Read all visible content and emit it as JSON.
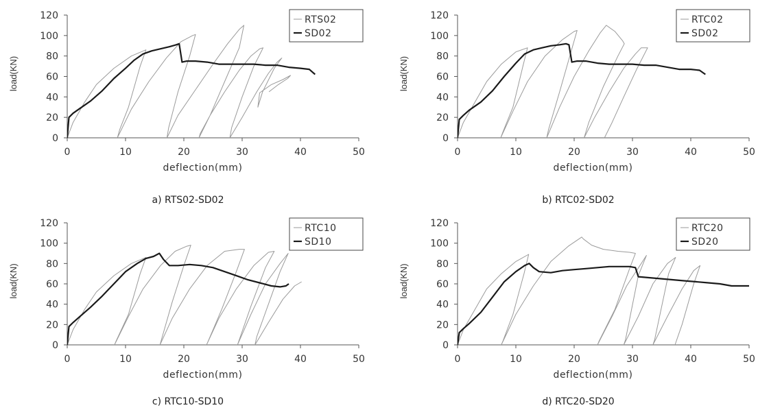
{
  "figure": {
    "panels": [
      {
        "caption": "a) RTS02-SD02",
        "chart_data": {
          "type": "line",
          "xlabel": "deflection(mm)",
          "ylabel": "load(KN)",
          "xlim": [
            0,
            50
          ],
          "ylim": [
            0,
            120
          ],
          "xticks": [
            "0",
            "10",
            "20",
            "30",
            "40",
            "50"
          ],
          "yticks": [
            "0",
            "20",
            "40",
            "60",
            "80",
            "100",
            "120"
          ],
          "grid": false,
          "legend_position": "top-right",
          "series": [
            {
              "name": "RTS02",
              "style": "thin-gray",
              "x": [
                0,
                1,
                3,
                5,
                8,
                11,
                13.5,
                12.5,
                10.5,
                9,
                8.6,
                11,
                14,
                17,
                19.5,
                21.5,
                22,
                21,
                19,
                17.4,
                17.1,
                19,
                22,
                25,
                27.5,
                29.5,
                30.3,
                29.5,
                27,
                24.5,
                22.8,
                22.6,
                24.5,
                27,
                29.5,
                31.5,
                33,
                33.6,
                32,
                30,
                28.2,
                27.9,
                30,
                32.5,
                34.5,
                36,
                36.8,
                35.5,
                33.5,
                32.7,
                33,
                35,
                37,
                38.3,
                37.8,
                36.2,
                34.6
              ],
              "y": [
                0,
                15,
                35,
                52,
                68,
                80,
                86,
                70,
                30,
                8,
                0,
                28,
                55,
                78,
                94,
                100,
                101,
                80,
                45,
                10,
                0,
                22,
                47,
                72,
                92,
                106,
                110,
                88,
                55,
                22,
                4,
                0,
                22,
                45,
                66,
                80,
                87,
                88,
                70,
                40,
                10,
                0,
                20,
                45,
                63,
                74,
                78,
                68,
                45,
                30,
                44,
                52,
                57,
                61,
                58,
                52,
                45
              ]
            },
            {
              "name": "SD02",
              "style": "thick-black",
              "x": [
                0,
                0.3,
                1,
                2,
                4,
                6,
                8,
                10,
                11.5,
                13,
                14.5,
                16,
                17.5,
                18.7,
                19.2,
                19.7,
                20.5,
                22,
                24,
                26,
                28,
                30,
                32,
                34,
                36,
                38,
                40,
                41.5,
                42.5
              ],
              "y": [
                0,
                20,
                24,
                28,
                36,
                46,
                58,
                68,
                76,
                82,
                85,
                87,
                89,
                91,
                92,
                74,
                75,
                75,
                74,
                72,
                72,
                72,
                72,
                71,
                71,
                69,
                68,
                67,
                62
              ]
            }
          ]
        }
      },
      {
        "caption": "b) RTC02-SD02",
        "chart_data": {
          "type": "line",
          "xlabel": "deflection(mm)",
          "ylabel": "load(KN)",
          "xlim": [
            0,
            50
          ],
          "ylim": [
            0,
            120
          ],
          "xticks": [
            "0",
            "10",
            "20",
            "30",
            "40",
            "50"
          ],
          "yticks": [
            "0",
            "20",
            "40",
            "60",
            "80",
            "100",
            "120"
          ],
          "grid": false,
          "legend_position": "top-right",
          "series": [
            {
              "name": "RTC02",
              "style": "thin-gray",
              "x": [
                0,
                1,
                3,
                5,
                7.5,
                10,
                12,
                11.3,
                9.5,
                7.8,
                7.4,
                9.5,
                12,
                15,
                18,
                20,
                20.5,
                19.5,
                17.5,
                15.6,
                15.3,
                17.5,
                20,
                22.5,
                24.5,
                25.5,
                27,
                28.3,
                28.6,
                27.5,
                25,
                22.5,
                21.7,
                23.5,
                26,
                28.5,
                30.5,
                31.5,
                32.6,
                30.8,
                28.5,
                26.5,
                25.2
              ],
              "y": [
                0,
                15,
                35,
                55,
                72,
                84,
                88,
                72,
                30,
                6,
                0,
                26,
                55,
                80,
                96,
                104,
                105,
                85,
                45,
                8,
                0,
                30,
                60,
                85,
                103,
                110,
                104,
                95,
                92,
                80,
                50,
                15,
                0,
                20,
                45,
                68,
                82,
                88,
                88,
                68,
                40,
                15,
                0
              ]
            },
            {
              "name": "SD02",
              "style": "thick-black",
              "x": [
                0,
                0.3,
                1,
                2,
                4,
                6,
                8,
                10,
                11.5,
                13,
                14.5,
                16,
                17.5,
                18.6,
                19.1,
                19.6,
                20.5,
                22,
                24,
                26,
                28,
                30,
                32,
                34,
                36,
                38,
                40,
                41.5,
                42.5
              ],
              "y": [
                0,
                18,
                22,
                27,
                35,
                46,
                60,
                73,
                82,
                86,
                88,
                90,
                91,
                92,
                91,
                74,
                75,
                75,
                73,
                72,
                72,
                72,
                71,
                71,
                69,
                67,
                67,
                66,
                62
              ]
            }
          ]
        }
      },
      {
        "caption": "c) RTC10-SD10",
        "chart_data": {
          "type": "line",
          "xlabel": "deflection(mm)",
          "ylabel": "load(KN)",
          "xlim": [
            0,
            50
          ],
          "ylim": [
            0,
            120
          ],
          "xticks": [
            "0",
            "10",
            "20",
            "30",
            "40",
            "50"
          ],
          "yticks": [
            "0",
            "20",
            "40",
            "60",
            "80",
            "100",
            "120"
          ],
          "grid": false,
          "legend_position": "top-right",
          "series": [
            {
              "name": "RTC10",
              "style": "thin-gray",
              "x": [
                0,
                1,
                3,
                5,
                8,
                11,
                13.5,
                12.5,
                10.5,
                8.4,
                8.1,
                10.5,
                13,
                16,
                18.5,
                20.5,
                21.2,
                20,
                18,
                16.2,
                15.9,
                18,
                21,
                24,
                27,
                29.5,
                30.4,
                29,
                26.5,
                24.2,
                23.9,
                26,
                29,
                32,
                34.5,
                35.5,
                34,
                31.5,
                29.5,
                29.2,
                31.5,
                34,
                36.5,
                37.9,
                36.5,
                34.5,
                32.5,
                32.2,
                34.5,
                37,
                39,
                40.2
              ],
              "y": [
                0,
                15,
                35,
                52,
                68,
                80,
                86,
                70,
                30,
                4,
                0,
                28,
                55,
                78,
                92,
                97,
                98,
                78,
                42,
                6,
                0,
                26,
                55,
                78,
                92,
                94,
                94,
                72,
                35,
                4,
                0,
                26,
                55,
                78,
                91,
                92,
                76,
                38,
                5,
                0,
                30,
                60,
                80,
                90,
                72,
                40,
                8,
                0,
                22,
                45,
                58,
                62
              ]
            },
            {
              "name": "SD10",
              "style": "thick-black",
              "x": [
                0,
                0.3,
                1,
                2,
                4,
                6,
                8,
                10,
                12,
                13.5,
                14.8,
                15.8,
                16.5,
                17.5,
                19,
                21,
                23,
                25,
                27,
                29,
                31,
                33,
                35,
                36.5,
                37.5,
                38
              ],
              "y": [
                0,
                18,
                22,
                27,
                37,
                48,
                60,
                72,
                80,
                85,
                87,
                90,
                84,
                78,
                78,
                79,
                78,
                76,
                72,
                68,
                64,
                61,
                58,
                57,
                58,
                60
              ]
            }
          ]
        }
      },
      {
        "caption": "d) RTC20-SD20",
        "chart_data": {
          "type": "line",
          "xlabel": "deflection(mm)",
          "ylabel": "load(KN)",
          "xlim": [
            0,
            50
          ],
          "ylim": [
            0,
            120
          ],
          "xticks": [
            "0",
            "10",
            "20",
            "30",
            "40",
            "50"
          ],
          "yticks": [
            "0",
            "20",
            "40",
            "60",
            "80",
            "100",
            "120"
          ],
          "grid": false,
          "legend_position": "top-right",
          "series": [
            {
              "name": "RTC20",
              "style": "thin-gray",
              "x": [
                0,
                1,
                3,
                5,
                7.5,
                10,
                12.2,
                11.4,
                9.5,
                7.8,
                7.5,
                10,
                13,
                16,
                19,
                21.3,
                21.6,
                23,
                25,
                27.5,
                29.5,
                30.5,
                29.5,
                27,
                24.3,
                24,
                26.5,
                29,
                31.5,
                32.4,
                31,
                28.8,
                28.5,
                31,
                33.5,
                36,
                37.4,
                36.2,
                33.8,
                33.5,
                36,
                38.5,
                40.5,
                41.6,
                40.5,
                38.5,
                37.3
              ],
              "y": [
                0,
                15,
                35,
                55,
                70,
                82,
                89,
                70,
                30,
                4,
                0,
                30,
                58,
                82,
                97,
                106,
                104,
                98,
                94,
                92,
                91,
                90,
                75,
                35,
                4,
                0,
                28,
                58,
                80,
                88,
                68,
                5,
                0,
                28,
                60,
                80,
                86,
                70,
                5,
                0,
                28,
                55,
                73,
                78,
                60,
                20,
                0
              ]
            },
            {
              "name": "SD20",
              "style": "thick-black",
              "x": [
                0,
                0.3,
                1,
                2,
                4,
                6,
                8,
                10,
                11.5,
                12.3,
                13,
                14,
                16,
                18,
                20,
                22,
                24,
                26,
                28,
                29.5,
                30.5,
                31,
                33,
                35,
                37,
                39,
                41,
                43,
                45,
                47,
                49,
                50
              ],
              "y": [
                0,
                12,
                16,
                21,
                32,
                47,
                62,
                72,
                78,
                80,
                76,
                72,
                71,
                73,
                74,
                75,
                76,
                77,
                77,
                77,
                76,
                67,
                66,
                65,
                64,
                63,
                62,
                61,
                60,
                58,
                58,
                58
              ]
            }
          ]
        }
      }
    ]
  }
}
